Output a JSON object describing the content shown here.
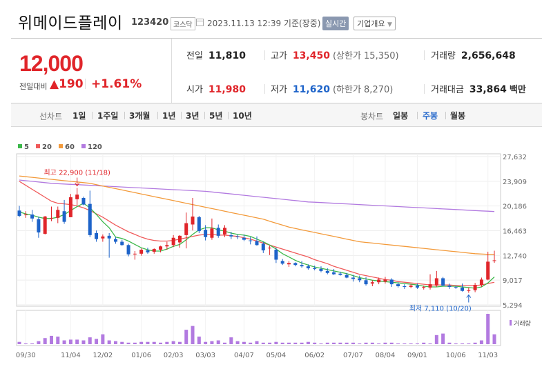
{
  "header": {
    "name": "위메이드플레이",
    "code": "123420",
    "market": "코스닥",
    "datetime": "2023.11.13 12:39 기준(장중)",
    "realtime": "실시간",
    "company_info": "기업개요",
    "caret": "▼"
  },
  "quote": {
    "price": "12,000",
    "change_label": "전일대비",
    "change": "▲190",
    "rate": "+1.61%",
    "prev_close_label": "전일",
    "prev_close": "11,810",
    "high_label": "고가",
    "high": "13,450",
    "upper_limit": "(상한가 15,350)",
    "volume_label": "거래량",
    "volume": "2,656,648",
    "open_label": "시가",
    "open": "11,980",
    "low_label": "저가",
    "low": "11,620",
    "lower_limit": "(하한가 8,270)",
    "amount_label": "거래대금",
    "amount": "33,864",
    "amount_unit": "백만"
  },
  "tabs": {
    "line_label": "선차트",
    "line": [
      "1일",
      "1주일",
      "3개월",
      "1년",
      "3년",
      "5년",
      "10년"
    ],
    "candle_label": "봉차트",
    "candle": [
      "일봉",
      "주봉",
      "월봉"
    ],
    "active_candle": "주봉"
  },
  "colors": {
    "up": "#e0252a",
    "down": "#1d63c9",
    "ma5": "#3cb84a",
    "ma20": "#f05a5a",
    "ma60": "#f39a3a",
    "ma120": "#b27ae0",
    "volume": "#b27ae0"
  },
  "chart_data": {
    "type": "candlestick",
    "legend": [
      {
        "name": "5",
        "color": "#3cb84a"
      },
      {
        "name": "20",
        "color": "#f05a5a"
      },
      {
        "name": "60",
        "color": "#f39a3a"
      },
      {
        "name": "120",
        "color": "#b27ae0"
      }
    ],
    "y_ticks": [
      "27,632",
      "23,909",
      "20,186",
      "16,463",
      "12,740",
      "9,017",
      "5,294"
    ],
    "y_tick_values": [
      27632,
      23909,
      20186,
      16463,
      12740,
      9017,
      5294
    ],
    "ylim": [
      5294,
      27632
    ],
    "x_ticks": [
      "09/30",
      "11/04",
      "12/02",
      "01/06",
      "02/03",
      "03/03",
      "04/07",
      "05/04",
      "06/02",
      "07/07",
      "08/04",
      "09/01",
      "10/06",
      "11/03"
    ],
    "x_tick_index": [
      1,
      8,
      13,
      19,
      24,
      29,
      35,
      40,
      46,
      52,
      57,
      62,
      68,
      73
    ],
    "annotations": {
      "high": "최고 22,900 (11/18)",
      "high_value": 22900,
      "high_index": 9,
      "low": "최저 7,110 (10/20)",
      "low_value": 7110,
      "low_index": 70
    },
    "volume_label": "거래량",
    "candles": [
      {
        "o": 19500,
        "h": 20200,
        "l": 18500,
        "c": 18700
      },
      {
        "o": 18900,
        "h": 19400,
        "l": 18400,
        "c": 18900
      },
      {
        "o": 18900,
        "h": 19600,
        "l": 17800,
        "c": 18300
      },
      {
        "o": 18200,
        "h": 18600,
        "l": 15400,
        "c": 16200
      },
      {
        "o": 16000,
        "h": 18700,
        "l": 15900,
        "c": 18600
      },
      {
        "o": 18400,
        "h": 20100,
        "l": 17900,
        "c": 18400
      },
      {
        "o": 18400,
        "h": 20100,
        "l": 17600,
        "c": 19600
      },
      {
        "o": 19400,
        "h": 21100,
        "l": 17500,
        "c": 17800
      },
      {
        "o": 18500,
        "h": 22000,
        "l": 18500,
        "c": 21500
      },
      {
        "o": 21200,
        "h": 22900,
        "l": 20300,
        "c": 21900
      },
      {
        "o": 21400,
        "h": 21600,
        "l": 20300,
        "c": 20400
      },
      {
        "o": 20500,
        "h": 22500,
        "l": 15500,
        "c": 15800
      },
      {
        "o": 16100,
        "h": 16500,
        "l": 14800,
        "c": 15200
      },
      {
        "o": 15300,
        "h": 15900,
        "l": 14800,
        "c": 15600
      },
      {
        "o": 15700,
        "h": 16100,
        "l": 12400,
        "c": 15300
      },
      {
        "o": 15200,
        "h": 15500,
        "l": 14500,
        "c": 14800
      },
      {
        "o": 14800,
        "h": 15100,
        "l": 14200,
        "c": 14300
      },
      {
        "o": 14300,
        "h": 14500,
        "l": 12600,
        "c": 12900
      },
      {
        "o": 13000,
        "h": 13400,
        "l": 12100,
        "c": 13000
      },
      {
        "o": 13000,
        "h": 13800,
        "l": 12700,
        "c": 13600
      },
      {
        "o": 13500,
        "h": 13900,
        "l": 13000,
        "c": 13200
      },
      {
        "o": 13300,
        "h": 13800,
        "l": 13000,
        "c": 13700
      },
      {
        "o": 13600,
        "h": 14200,
        "l": 13200,
        "c": 14100
      },
      {
        "o": 14100,
        "h": 14800,
        "l": 13600,
        "c": 14300
      },
      {
        "o": 14300,
        "h": 15800,
        "l": 14000,
        "c": 15400
      },
      {
        "o": 14700,
        "h": 15800,
        "l": 13900,
        "c": 15700
      },
      {
        "o": 15800,
        "h": 19200,
        "l": 13800,
        "c": 17600
      },
      {
        "o": 17400,
        "h": 21400,
        "l": 16500,
        "c": 18600
      },
      {
        "o": 18500,
        "h": 18700,
        "l": 16100,
        "c": 16400
      },
      {
        "o": 16600,
        "h": 17300,
        "l": 15000,
        "c": 15500
      },
      {
        "o": 15400,
        "h": 18300,
        "l": 15100,
        "c": 16800
      },
      {
        "o": 16900,
        "h": 17400,
        "l": 15400,
        "c": 15700
      },
      {
        "o": 15900,
        "h": 17300,
        "l": 15500,
        "c": 16900
      },
      {
        "o": 15800,
        "h": 16300,
        "l": 15200,
        "c": 15600
      },
      {
        "o": 15600,
        "h": 15900,
        "l": 15200,
        "c": 15500
      },
      {
        "o": 15400,
        "h": 15900,
        "l": 14900,
        "c": 15100
      },
      {
        "o": 15000,
        "h": 15500,
        "l": 14400,
        "c": 14900
      },
      {
        "o": 14900,
        "h": 15600,
        "l": 14200,
        "c": 14300
      },
      {
        "o": 14500,
        "h": 14800,
        "l": 13100,
        "c": 13500
      },
      {
        "o": 13900,
        "h": 14200,
        "l": 12800,
        "c": 13900
      },
      {
        "o": 13600,
        "h": 13900,
        "l": 11600,
        "c": 12100
      },
      {
        "o": 11900,
        "h": 12200,
        "l": 11300,
        "c": 11500
      },
      {
        "o": 11400,
        "h": 11900,
        "l": 11000,
        "c": 11600
      },
      {
        "o": 11600,
        "h": 11700,
        "l": 11100,
        "c": 11300
      },
      {
        "o": 11300,
        "h": 11900,
        "l": 10900,
        "c": 11100
      },
      {
        "o": 11100,
        "h": 11400,
        "l": 10600,
        "c": 10800
      },
      {
        "o": 10800,
        "h": 11200,
        "l": 10500,
        "c": 10700
      },
      {
        "o": 10700,
        "h": 11100,
        "l": 10200,
        "c": 10400
      },
      {
        "o": 10400,
        "h": 10800,
        "l": 9900,
        "c": 10100
      },
      {
        "o": 10200,
        "h": 10700,
        "l": 9800,
        "c": 9900
      },
      {
        "o": 10000,
        "h": 10300,
        "l": 9700,
        "c": 9800
      },
      {
        "o": 9800,
        "h": 10100,
        "l": 9300,
        "c": 9400
      },
      {
        "o": 9400,
        "h": 9800,
        "l": 8800,
        "c": 9200
      },
      {
        "o": 9300,
        "h": 9700,
        "l": 8700,
        "c": 9000
      },
      {
        "o": 9000,
        "h": 9500,
        "l": 8200,
        "c": 8400
      },
      {
        "o": 8500,
        "h": 9000,
        "l": 8100,
        "c": 8700
      },
      {
        "o": 8700,
        "h": 9400,
        "l": 8400,
        "c": 9100
      },
      {
        "o": 8800,
        "h": 9500,
        "l": 8500,
        "c": 9100
      },
      {
        "o": 9100,
        "h": 9300,
        "l": 8000,
        "c": 8400
      },
      {
        "o": 8400,
        "h": 8700,
        "l": 7900,
        "c": 8100
      },
      {
        "o": 8100,
        "h": 8400,
        "l": 7700,
        "c": 8000
      },
      {
        "o": 8000,
        "h": 8400,
        "l": 7800,
        "c": 8200
      },
      {
        "o": 8200,
        "h": 8500,
        "l": 7700,
        "c": 7900
      },
      {
        "o": 7900,
        "h": 8200,
        "l": 7600,
        "c": 8000
      },
      {
        "o": 7900,
        "h": 9900,
        "l": 7600,
        "c": 8400
      },
      {
        "o": 8200,
        "h": 10400,
        "l": 8000,
        "c": 9300
      },
      {
        "o": 9300,
        "h": 9500,
        "l": 8100,
        "c": 8200
      },
      {
        "o": 8200,
        "h": 8500,
        "l": 7700,
        "c": 8000
      },
      {
        "o": 8000,
        "h": 8200,
        "l": 7700,
        "c": 7900
      },
      {
        "o": 7900,
        "h": 8500,
        "l": 7300,
        "c": 7400
      },
      {
        "o": 7400,
        "h": 7900,
        "l": 7110,
        "c": 7500
      },
      {
        "o": 7500,
        "h": 8600,
        "l": 7200,
        "c": 8300
      },
      {
        "o": 8300,
        "h": 9400,
        "l": 8000,
        "c": 9100
      },
      {
        "o": 9100,
        "h": 13300,
        "l": 9000,
        "c": 11800
      },
      {
        "o": 11980,
        "h": 13450,
        "l": 11620,
        "c": 12000
      }
    ],
    "volumes": [
      3,
      1,
      1,
      4,
      8,
      11,
      10,
      5,
      6,
      6,
      5,
      9,
      7,
      13,
      5,
      4,
      3,
      2,
      2,
      3,
      3,
      3,
      2,
      3,
      4,
      3,
      19,
      24,
      10,
      3,
      4,
      5,
      2,
      9,
      4,
      3,
      2,
      4,
      2,
      2,
      3,
      2,
      2,
      2,
      2,
      3,
      2,
      1,
      2,
      2,
      2,
      2,
      2,
      1,
      2,
      2,
      1,
      2,
      2,
      1,
      1,
      1,
      1,
      2,
      1,
      12,
      14,
      2,
      1,
      1,
      1,
      2,
      5,
      40,
      13
    ],
    "ma5": [
      19300,
      19000,
      18800,
      18500,
      18300,
      18300,
      18500,
      18900,
      19500,
      20100,
      20600,
      19900,
      18900,
      17800,
      16900,
      15500,
      15300,
      14900,
      14400,
      13900,
      13600,
      13400,
      13400,
      13700,
      14100,
      14400,
      15100,
      15900,
      16600,
      16900,
      16900,
      16600,
      16400,
      16100,
      15900,
      15800,
      15600,
      15200,
      14800,
      14300,
      13700,
      13000,
      12500,
      12000,
      11600,
      11300,
      11000,
      10800,
      10600,
      10400,
      10200,
      10000,
      9700,
      9400,
      9200,
      9000,
      8900,
      8800,
      8700,
      8600,
      8500,
      8400,
      8300,
      8100,
      8000,
      8000,
      8100,
      8100,
      8100,
      8000,
      7900,
      7800,
      8000,
      8600,
      9500
    ],
    "ma20": [
      23900,
      23300,
      22700,
      22100,
      21500,
      20900,
      20600,
      20500,
      20400,
      20200,
      19900,
      19500,
      19000,
      18500,
      17900,
      17300,
      16800,
      16300,
      15900,
      15500,
      15200,
      15000,
      14900,
      14900,
      15000,
      15200,
      15400,
      15600,
      15800,
      15900,
      15900,
      15800,
      15800,
      15700,
      15600,
      15400,
      15200,
      14900,
      14600,
      14300,
      14000,
      13700,
      13400,
      13100,
      12800,
      12500,
      12100,
      11800,
      11500,
      11100,
      10800,
      10500,
      10200,
      9900,
      9700,
      9500,
      9300,
      9100,
      9000,
      8800,
      8700,
      8600,
      8500,
      8400,
      8300,
      8300,
      8300,
      8300,
      8200,
      8200,
      8200,
      8200,
      8300,
      8500,
      8700
    ],
    "ma60": [
      24700,
      24600,
      24500,
      24400,
      24300,
      24200,
      24100,
      24000,
      23900,
      23800,
      23700,
      23600,
      23400,
      23200,
      23000,
      22800,
      22600,
      22400,
      22200,
      22000,
      21800,
      21600,
      21400,
      21200,
      21000,
      20800,
      20600,
      20400,
      20200,
      20000,
      19800,
      19600,
      19400,
      19200,
      19000,
      18800,
      18600,
      18400,
      18200,
      17900,
      17600,
      17300,
      17000,
      16800,
      16600,
      16400,
      16200,
      16000,
      15800,
      15600,
      15400,
      15200,
      15000,
      14800,
      14700,
      14600,
      14500,
      14400,
      14300,
      14200,
      14100,
      14000,
      13900,
      13800,
      13700,
      13600,
      13500,
      13400,
      13300,
      13200,
      13100,
      13000,
      12950,
      12900,
      12900
    ],
    "ma120": [
      24100,
      24000,
      23900,
      23800,
      23700,
      23600,
      23550,
      23500,
      23450,
      23400,
      23350,
      23300,
      23250,
      23200,
      23150,
      23100,
      23050,
      23000,
      22950,
      22900,
      22850,
      22800,
      22750,
      22700,
      22650,
      22600,
      22550,
      22500,
      22450,
      22400,
      22300,
      22200,
      22100,
      22000,
      21900,
      21800,
      21700,
      21600,
      21500,
      21400,
      21300,
      21200,
      21100,
      21000,
      20900,
      20800,
      20750,
      20700,
      20650,
      20600,
      20550,
      20500,
      20450,
      20400,
      20350,
      20300,
      20250,
      20200,
      20150,
      20100,
      20050,
      20000,
      19950,
      19900,
      19850,
      19800,
      19750,
      19700,
      19650,
      19600,
      19550,
      19500,
      19450,
      19400,
      19350
    ]
  }
}
